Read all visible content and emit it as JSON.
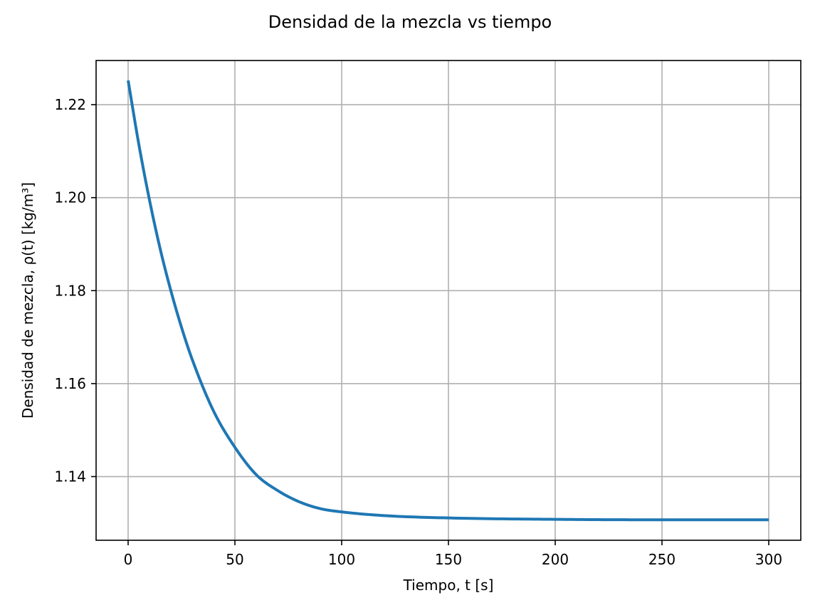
{
  "chart_data": {
    "type": "line",
    "title": "Densidad de la mezcla vs tiempo",
    "xlabel": "Tiempo, t [s]",
    "ylabel": "Densidad de mezcla, ρ(t) [kg/m³]",
    "xlim": [
      -15,
      315
    ],
    "ylim": [
      1.1263,
      1.2295
    ],
    "x_ticks": [
      0,
      50,
      100,
      150,
      200,
      250,
      300
    ],
    "x_tick_labels": [
      "0",
      "50",
      "100",
      "150",
      "200",
      "250",
      "300"
    ],
    "y_ticks": [
      1.14,
      1.16,
      1.18,
      1.2,
      1.22
    ],
    "y_tick_labels": [
      "1.14",
      "1.16",
      "1.18",
      "1.20",
      "1.22"
    ],
    "grid": true,
    "series": [
      {
        "color": "#1f77b4",
        "x": [
          0,
          5,
          10,
          15,
          20,
          25,
          30,
          40,
          50,
          60,
          70,
          80,
          90,
          100,
          120,
          150,
          200,
          250,
          300
        ],
        "y": [
          1.2252,
          1.2115,
          1.1995,
          1.189,
          1.18,
          1.1721,
          1.1652,
          1.1541,
          1.1463,
          1.1404,
          1.137,
          1.1346,
          1.1331,
          1.1324,
          1.1316,
          1.1311,
          1.1308,
          1.1307,
          1.1307
        ]
      }
    ]
  }
}
